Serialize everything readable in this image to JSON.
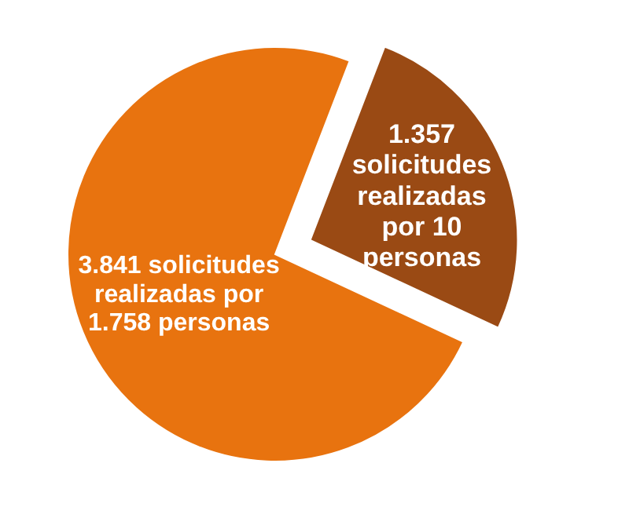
{
  "chart_data": {
    "type": "pie",
    "categories": [
      "3.841 solicitudes realizadas por 1.758 personas",
      "1.357 solicitudes realizadas por 10 personas"
    ],
    "values": [
      3841,
      1357
    ],
    "colors": [
      "#e8730f",
      "#9a4a14"
    ]
  }
}
